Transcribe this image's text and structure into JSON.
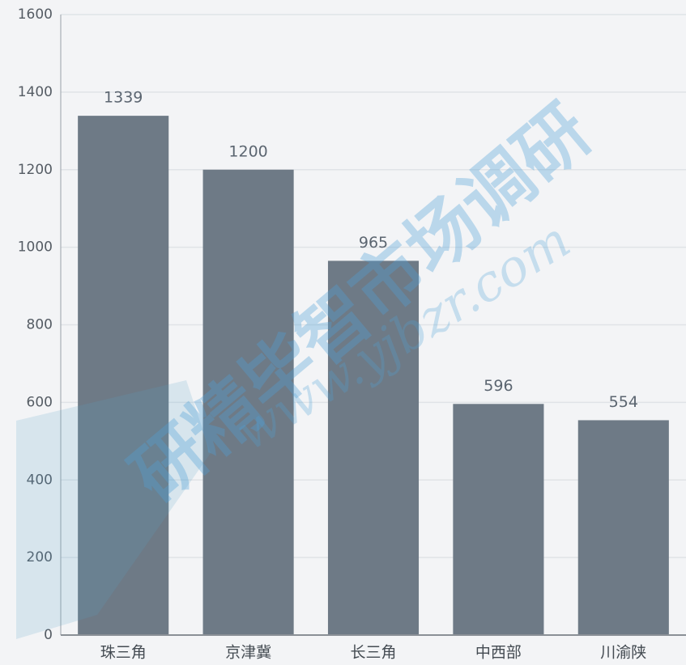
{
  "chart_data": {
    "type": "bar",
    "categories": [
      "珠三角",
      "京津冀",
      "长三角",
      "中西部",
      "川渝陕"
    ],
    "values": [
      1339,
      1200,
      965,
      596,
      554
    ],
    "color": "#6e7a86",
    "ylim": [
      0,
      1600
    ],
    "yticks": [
      0,
      200,
      400,
      600,
      800,
      1000,
      1200,
      1400,
      1600
    ],
    "grid": true,
    "watermark": [
      "研精毕智市场调研",
      "www.yjbzr.com"
    ]
  }
}
